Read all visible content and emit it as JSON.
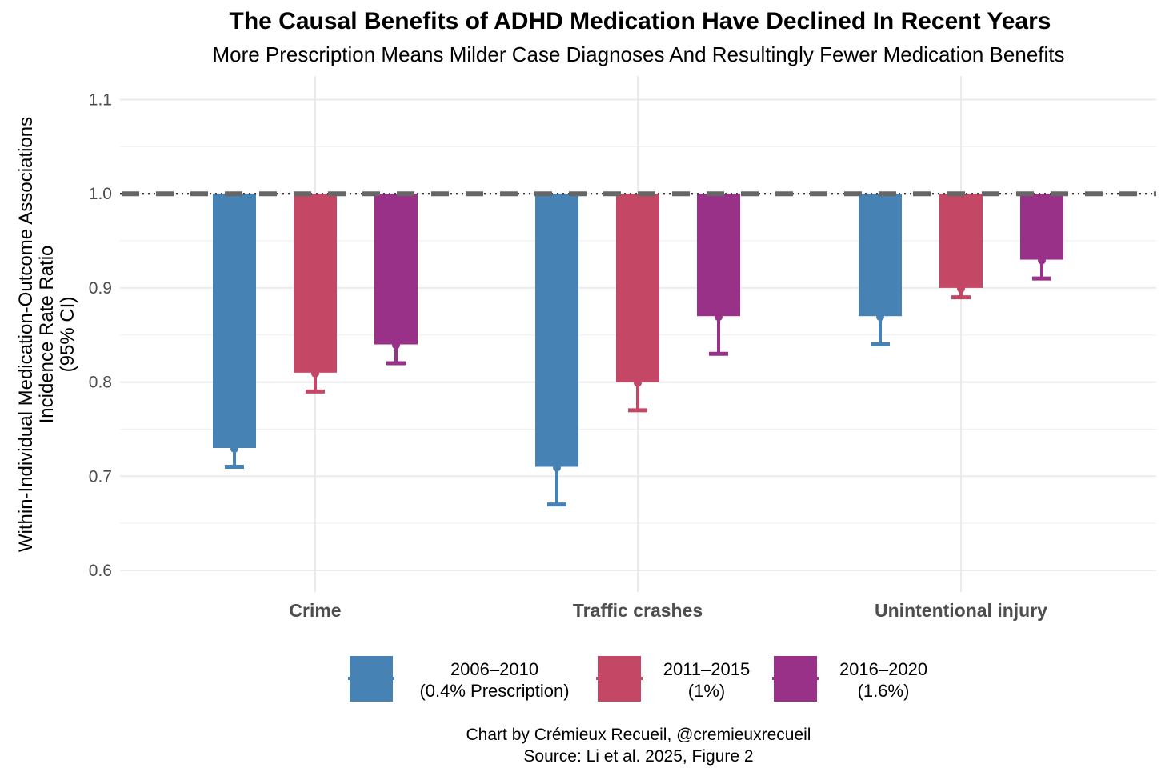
{
  "chart_data": {
    "type": "bar",
    "title": "The Causal Benefits of ADHD Medication Have Declined In Recent Years",
    "subtitle": "More Prescription Means Milder Case Diagnoses And Resultingly Fewer Medication Benefits",
    "ylabel_lines": [
      "Within-Individual Medication-Outcome Associations",
      "Incidence Rate Ratio",
      "(95% CI)"
    ],
    "xlabel": "",
    "ylim": [
      0.6,
      1.1
    ],
    "yticks": [
      "0.6",
      "0.7",
      "0.8",
      "0.9",
      "1.0",
      "1.1"
    ],
    "baseline": 1.0,
    "reference_line": {
      "value": 1.0,
      "style": "dashed",
      "color": "#666666"
    },
    "grid": true,
    "legend_position": "bottom",
    "categories": [
      "Crime",
      "Traffic crashes",
      "Unintentional injury"
    ],
    "series": [
      {
        "name": "2006–2010",
        "name_line2": "(0.4% Prescription)",
        "color": "#4682B4",
        "values": [
          0.73,
          0.71,
          0.87
        ],
        "ci_lower": [
          0.71,
          0.67,
          0.84
        ]
      },
      {
        "name": "2011–2015",
        "name_line2": "(1%)",
        "color": "#C44866",
        "values": [
          0.81,
          0.8,
          0.9
        ],
        "ci_lower": [
          0.79,
          0.77,
          0.89
        ]
      },
      {
        "name": "2016–2020",
        "name_line2": "(1.6%)",
        "color": "#993189",
        "values": [
          0.84,
          0.87,
          0.93
        ],
        "ci_lower": [
          0.82,
          0.83,
          0.91
        ]
      }
    ],
    "caption_lines": [
      "Chart by Crémieux Recueil, @cremieuxrecueil",
      "Source: Li et al. 2025, Figure 2"
    ]
  }
}
